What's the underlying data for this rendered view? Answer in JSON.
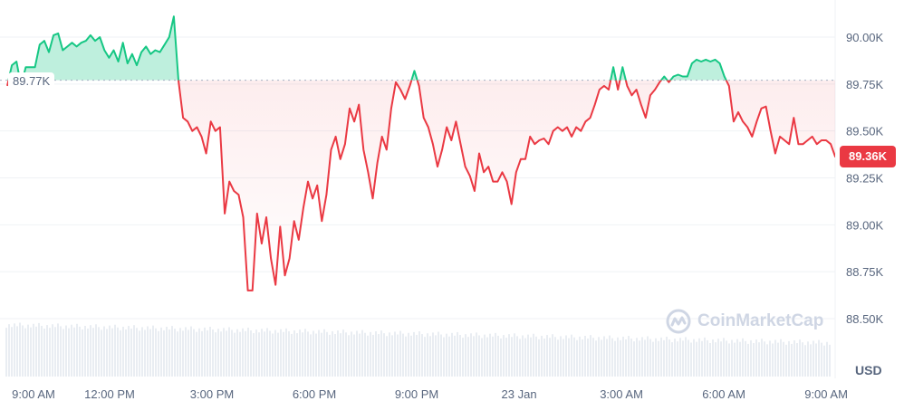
{
  "chart_data": {
    "type": "area",
    "currency_label": "USD",
    "baseline": {
      "value": 89.77,
      "label": "89.77K"
    },
    "current_price": {
      "value": 89.36,
      "label": "89.36K"
    },
    "ylim": [
      88.42,
      90.2
    ],
    "y_ticks": [
      {
        "value": 90.0,
        "label": "90.00K"
      },
      {
        "value": 89.75,
        "label": "89.75K"
      },
      {
        "value": 89.5,
        "label": "89.50K"
      },
      {
        "value": 89.25,
        "label": "89.25K"
      },
      {
        "value": 89.0,
        "label": "89.00K"
      },
      {
        "value": 88.75,
        "label": "88.75K"
      },
      {
        "value": 88.5,
        "label": "88.50K"
      }
    ],
    "x_ticks": [
      "9:00 AM",
      "12:00 PM",
      "3:00 PM",
      "6:00 PM",
      "9:00 PM",
      "23 Jan",
      "3:00 AM",
      "6:00 AM",
      "9:00 AM"
    ],
    "x_tick_hours": [
      0,
      3,
      6,
      9,
      12,
      15,
      18,
      21,
      24
    ],
    "x_end_hours": 24.27,
    "grid": true,
    "colors": {
      "up": "#16c784",
      "down": "#ea3943",
      "grid": "#eff2f5",
      "volume": "#e9edf2"
    },
    "values": [
      89.74,
      89.85,
      89.87,
      89.74,
      89.84,
      89.84,
      89.84,
      89.96,
      89.98,
      89.92,
      90.01,
      90.02,
      89.93,
      89.95,
      89.97,
      89.95,
      89.97,
      89.98,
      90.01,
      89.98,
      90.0,
      89.93,
      89.89,
      89.93,
      89.87,
      89.97,
      89.86,
      89.91,
      89.85,
      89.92,
      89.95,
      89.91,
      89.93,
      89.92,
      89.96,
      90.0,
      90.11,
      89.77,
      89.57,
      89.55,
      89.5,
      89.52,
      89.47,
      89.38,
      89.55,
      89.5,
      89.52,
      89.06,
      89.23,
      89.18,
      89.16,
      89.04,
      88.65,
      88.65,
      89.06,
      88.9,
      89.04,
      88.82,
      88.68,
      88.99,
      88.73,
      88.82,
      89.02,
      88.92,
      89.09,
      89.23,
      89.14,
      89.21,
      89.02,
      89.16,
      89.4,
      89.47,
      89.35,
      89.43,
      89.62,
      89.55,
      89.64,
      89.4,
      89.28,
      89.14,
      89.33,
      89.47,
      89.4,
      89.62,
      89.76,
      89.72,
      89.67,
      89.74,
      89.82,
      89.74,
      89.57,
      89.52,
      89.43,
      89.31,
      89.4,
      89.52,
      89.45,
      89.55,
      89.43,
      89.31,
      89.26,
      89.18,
      89.38,
      89.28,
      89.31,
      89.23,
      89.23,
      89.28,
      89.23,
      89.11,
      89.28,
      89.35,
      89.35,
      89.47,
      89.43,
      89.45,
      89.46,
      89.43,
      89.5,
      89.52,
      89.5,
      89.52,
      89.47,
      89.52,
      89.5,
      89.55,
      89.57,
      89.64,
      89.72,
      89.74,
      89.72,
      89.84,
      89.72,
      89.84,
      89.74,
      89.69,
      89.72,
      89.64,
      89.57,
      89.69,
      89.72,
      89.76,
      89.79,
      89.76,
      89.79,
      89.8,
      89.79,
      89.79,
      89.86,
      89.88,
      89.87,
      89.88,
      89.87,
      89.88,
      89.86,
      89.79,
      89.74,
      89.55,
      89.6,
      89.55,
      89.52,
      89.47,
      89.55,
      89.62,
      89.63,
      89.5,
      89.38,
      89.47,
      89.45,
      89.43,
      89.57,
      89.43,
      89.43,
      89.45,
      89.47,
      89.43,
      89.45,
      89.45,
      89.43,
      89.36
    ]
  },
  "watermark": "CoinMarketCap"
}
